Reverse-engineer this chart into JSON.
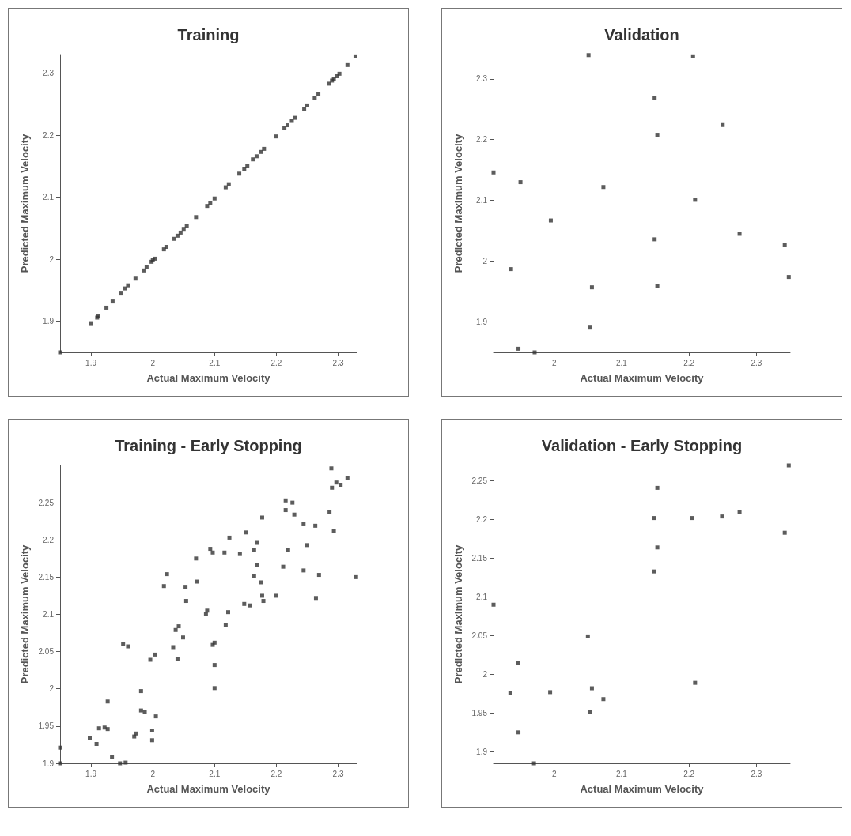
{
  "chart_data": [
    {
      "type": "scatter",
      "title": "Training",
      "xlabel": "Actual Maximum Velocity",
      "ylabel": "Predicted Maximum Velocity",
      "color": "#333333",
      "marker": "square",
      "grid": false,
      "xlim": [
        1.85,
        2.33
      ],
      "ylim": [
        1.85,
        2.33
      ],
      "xticks": [
        1.9,
        2,
        2.1,
        2.2,
        2.3
      ],
      "yticks": [
        1.9,
        2,
        2.1,
        2.2,
        2.3
      ],
      "x": [
        1.85,
        1.9,
        1.91,
        1.912,
        1.925,
        1.935,
        1.948,
        1.955,
        1.96,
        1.972,
        1.985,
        1.99,
        1.998,
        2.0,
        2.003,
        2.018,
        2.022,
        2.035,
        2.04,
        2.045,
        2.05,
        2.055,
        2.07,
        2.088,
        2.093,
        2.1,
        2.118,
        2.123,
        2.14,
        2.148,
        2.153,
        2.162,
        2.168,
        2.175,
        2.18,
        2.2,
        2.213,
        2.218,
        2.225,
        2.23,
        2.245,
        2.25,
        2.262,
        2.268,
        2.285,
        2.29,
        2.293,
        2.298,
        2.302,
        2.315,
        2.328
      ],
      "values": [
        1.85,
        1.897,
        1.906,
        1.909,
        1.922,
        1.932,
        1.946,
        1.953,
        1.958,
        1.97,
        1.982,
        1.987,
        1.996,
        1.999,
        2.001,
        2.016,
        2.02,
        2.033,
        2.038,
        2.043,
        2.049,
        2.054,
        2.068,
        2.086,
        2.091,
        2.098,
        2.116,
        2.121,
        2.138,
        2.146,
        2.151,
        2.161,
        2.166,
        2.173,
        2.178,
        2.198,
        2.211,
        2.216,
        2.223,
        2.228,
        2.242,
        2.248,
        2.26,
        2.266,
        2.283,
        2.288,
        2.291,
        2.295,
        2.299,
        2.313,
        2.327
      ]
    },
    {
      "type": "scatter",
      "title": "Validation",
      "xlabel": "Actual Maximum Velocity",
      "ylabel": "Predicted Maximum Velocity",
      "color": "#333333",
      "marker": "square",
      "grid": false,
      "xlim": [
        1.91,
        2.35
      ],
      "ylim": [
        1.85,
        2.34
      ],
      "xticks": [
        2,
        2.1,
        2.2,
        2.3
      ],
      "yticks": [
        1.9,
        2,
        2.1,
        2.2,
        2.3
      ],
      "x": [
        1.91,
        2.051,
        2.206,
        2.149,
        2.25,
        2.153,
        1.95,
        2.073,
        2.209,
        1.995,
        2.275,
        2.149,
        2.342,
        1.936,
        2.348,
        2.056,
        2.153,
        2.053,
        1.947,
        1.971
      ],
      "values": [
        2.146,
        2.339,
        2.337,
        2.268,
        2.224,
        2.208,
        2.13,
        2.122,
        2.101,
        2.067,
        2.045,
        2.036,
        2.027,
        1.987,
        1.974,
        1.957,
        1.959,
        1.892,
        1.856,
        1.85
      ]
    },
    {
      "type": "scatter",
      "title": "Training - Early Stopping",
      "xlabel": "Actual Maximum Velocity",
      "ylabel": "Predicted Maximum Velocity",
      "color": "#333333",
      "marker": "square",
      "grid": false,
      "xlim": [
        1.85,
        2.33
      ],
      "ylim": [
        1.9,
        2.3
      ],
      "xticks": [
        1.9,
        2,
        2.1,
        2.2,
        2.3
      ],
      "yticks": [
        1.9,
        1.95,
        2,
        2.05,
        2.1,
        2.15,
        2.2,
        2.25
      ],
      "x": [
        1.85,
        1.85,
        1.947,
        1.956,
        1.898,
        1.909,
        1.913,
        1.922,
        1.927,
        1.927,
        1.934,
        1.952,
        1.96,
        1.97,
        1.973,
        1.981,
        1.981,
        1.987,
        1.999,
        1.999,
        2.005,
        1.996,
        2.004,
        2.018,
        2.023,
        2.033,
        2.037,
        2.042,
        2.04,
        2.049,
        2.053,
        2.054,
        2.07,
        2.072,
        2.086,
        2.088,
        2.093,
        2.097,
        2.097,
        2.1,
        2.1,
        2.1,
        2.116,
        2.118,
        2.122,
        2.124,
        2.141,
        2.148,
        2.151,
        2.157,
        2.164,
        2.164,
        2.169,
        2.169,
        2.175,
        2.177,
        2.177,
        2.179,
        2.2,
        2.211,
        2.215,
        2.215,
        2.219,
        2.226,
        2.229,
        2.244,
        2.244,
        2.25,
        2.263,
        2.264,
        2.269,
        2.286,
        2.29,
        2.293,
        2.289,
        2.297,
        2.304,
        2.315,
        2.329
      ],
      "values": [
        1.921,
        1.9,
        1.9,
        1.901,
        1.934,
        1.926,
        1.947,
        1.948,
        1.946,
        1.983,
        1.908,
        2.06,
        2.057,
        1.936,
        1.94,
        1.997,
        1.971,
        1.969,
        1.944,
        1.931,
        1.963,
        2.039,
        2.046,
        2.138,
        2.154,
        2.056,
        2.079,
        2.084,
        2.04,
        2.069,
        2.137,
        2.118,
        2.175,
        2.144,
        2.101,
        2.105,
        2.188,
        2.183,
        2.059,
        2.062,
        2.032,
        2.001,
        2.183,
        2.086,
        2.103,
        2.203,
        2.181,
        2.114,
        2.21,
        2.112,
        2.187,
        2.152,
        2.196,
        2.166,
        2.143,
        2.23,
        2.125,
        2.118,
        2.125,
        2.164,
        2.253,
        2.24,
        2.187,
        2.25,
        2.234,
        2.221,
        2.159,
        2.193,
        2.219,
        2.122,
        2.153,
        2.237,
        2.27,
        2.212,
        2.296,
        2.277,
        2.274,
        2.283,
        2.15
      ]
    },
    {
      "type": "scatter",
      "title": "Validation - Early Stopping",
      "xlabel": "Actual Maximum Velocity",
      "ylabel": "Predicted Maximum Velocity",
      "color": "#333333",
      "marker": "square",
      "grid": false,
      "xlim": [
        1.91,
        2.35
      ],
      "ylim": [
        1.885,
        2.27
      ],
      "xticks": [
        2,
        2.1,
        2.2,
        2.3
      ],
      "yticks": [
        1.9,
        1.95,
        2,
        2.05,
        2.1,
        2.15,
        2.2,
        2.25
      ],
      "x": [
        1.91,
        1.97,
        1.935,
        1.946,
        1.947,
        1.994,
        2.05,
        2.056,
        2.053,
        2.073,
        2.148,
        2.153,
        2.148,
        2.153,
        2.205,
        2.209,
        2.249,
        2.275,
        2.342,
        2.348
      ],
      "values": [
        2.09,
        1.885,
        1.976,
        2.015,
        1.925,
        1.977,
        2.049,
        1.982,
        1.951,
        1.968,
        2.133,
        2.164,
        2.202,
        2.241,
        2.202,
        1.989,
        2.204,
        2.21,
        2.183,
        2.27
      ]
    }
  ]
}
